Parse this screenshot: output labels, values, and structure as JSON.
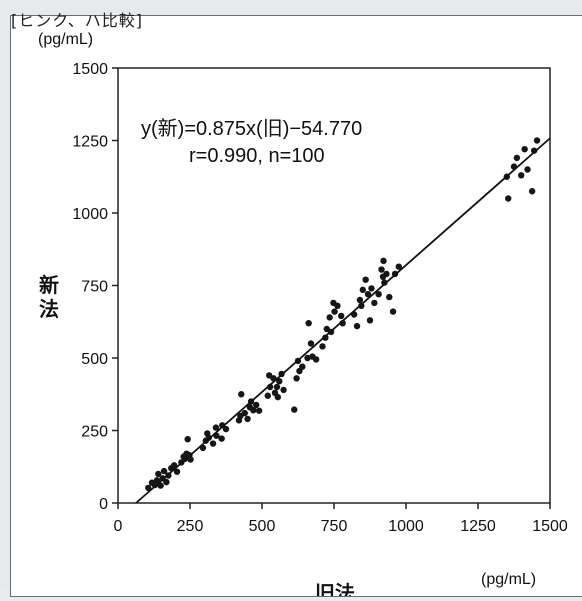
{
  "header_fragment": "[ヒンク、ハ比較]",
  "chart_data": {
    "type": "scatter",
    "xlabel": "旧法",
    "ylabel": "新法",
    "x_unit": "(pg/mL)",
    "y_unit": "(pg/mL)",
    "xlim": [
      0,
      1500
    ],
    "ylim": [
      0,
      1500
    ],
    "x_ticks": [
      "0",
      "250",
      "500",
      "750",
      "1000",
      "1250",
      "1500"
    ],
    "y_ticks": [
      "0",
      "250",
      "500",
      "750",
      "1000",
      "1250",
      "1500"
    ],
    "regression": {
      "equation": "y(新)=0.875x(旧)−54.770",
      "stats": "r=0.990, n=100",
      "slope": 0.875,
      "intercept": -54.77
    },
    "points": [
      [
        105,
        52
      ],
      [
        118,
        70
      ],
      [
        128,
        62
      ],
      [
        135,
        78
      ],
      [
        140,
        100
      ],
      [
        148,
        60
      ],
      [
        155,
        85
      ],
      [
        160,
        110
      ],
      [
        168,
        72
      ],
      [
        175,
        95
      ],
      [
        185,
        120
      ],
      [
        195,
        130
      ],
      [
        205,
        108
      ],
      [
        220,
        140
      ],
      [
        228,
        160
      ],
      [
        232,
        152
      ],
      [
        238,
        170
      ],
      [
        242,
        220
      ],
      [
        248,
        165
      ],
      [
        252,
        150
      ],
      [
        295,
        190
      ],
      [
        305,
        215
      ],
      [
        310,
        240
      ],
      [
        315,
        225
      ],
      [
        330,
        205
      ],
      [
        340,
        260
      ],
      [
        342,
        232
      ],
      [
        360,
        222
      ],
      [
        362,
        268
      ],
      [
        375,
        255
      ],
      [
        420,
        285
      ],
      [
        425,
        300
      ],
      [
        428,
        375
      ],
      [
        440,
        310
      ],
      [
        450,
        290
      ],
      [
        458,
        330
      ],
      [
        462,
        350
      ],
      [
        470,
        320
      ],
      [
        480,
        338
      ],
      [
        490,
        318
      ],
      [
        520,
        370
      ],
      [
        525,
        440
      ],
      [
        528,
        400
      ],
      [
        540,
        430
      ],
      [
        545,
        380
      ],
      [
        552,
        400
      ],
      [
        555,
        365
      ],
      [
        560,
        420
      ],
      [
        568,
        445
      ],
      [
        575,
        390
      ],
      [
        612,
        322
      ],
      [
        620,
        430
      ],
      [
        625,
        490
      ],
      [
        630,
        455
      ],
      [
        640,
        470
      ],
      [
        658,
        500
      ],
      [
        662,
        620
      ],
      [
        670,
        550
      ],
      [
        675,
        505
      ],
      [
        688,
        495
      ],
      [
        710,
        540
      ],
      [
        720,
        570
      ],
      [
        725,
        600
      ],
      [
        735,
        640
      ],
      [
        740,
        590
      ],
      [
        748,
        690
      ],
      [
        752,
        660
      ],
      [
        762,
        680
      ],
      [
        775,
        645
      ],
      [
        780,
        620
      ],
      [
        820,
        650
      ],
      [
        830,
        610
      ],
      [
        840,
        700
      ],
      [
        845,
        680
      ],
      [
        850,
        735
      ],
      [
        860,
        770
      ],
      [
        868,
        720
      ],
      [
        875,
        630
      ],
      [
        880,
        740
      ],
      [
        890,
        690
      ],
      [
        905,
        720
      ],
      [
        915,
        805
      ],
      [
        920,
        780
      ],
      [
        922,
        835
      ],
      [
        925,
        760
      ],
      [
        932,
        790
      ],
      [
        942,
        710
      ],
      [
        955,
        660
      ],
      [
        962,
        790
      ],
      [
        975,
        815
      ],
      [
        1350,
        1125
      ],
      [
        1355,
        1050
      ],
      [
        1375,
        1160
      ],
      [
        1385,
        1190
      ],
      [
        1400,
        1130
      ],
      [
        1412,
        1220
      ],
      [
        1422,
        1150
      ],
      [
        1438,
        1075
      ],
      [
        1445,
        1215
      ],
      [
        1455,
        1250
      ]
    ]
  }
}
